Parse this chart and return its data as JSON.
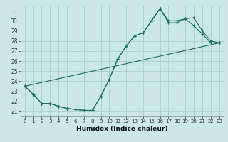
{
  "xlabel": "Humidex (Indice chaleur)",
  "xlim": [
    -0.5,
    23.5
  ],
  "ylim": [
    20.5,
    31.5
  ],
  "background_color": "#cce8e6",
  "grid_color": "#aaccca",
  "line_color": "#1a6b5e",
  "line1_x": [
    0,
    1,
    2,
    3,
    4,
    5,
    6,
    7,
    8,
    9,
    10,
    11,
    12,
    13,
    14,
    15,
    16,
    17,
    18,
    19,
    20,
    21,
    22,
    23
  ],
  "line1_y": [
    23.5,
    22.7,
    21.8,
    21.8,
    21.5,
    21.3,
    21.2,
    21.1,
    21.1,
    22.5,
    24.2,
    26.2,
    27.5,
    28.5,
    28.8,
    30.0,
    31.2,
    29.8,
    29.8,
    30.2,
    29.5,
    28.7,
    27.8,
    27.8
  ],
  "line2_x": [
    0,
    1,
    2,
    3,
    4,
    5,
    6,
    7,
    8,
    9,
    10,
    11,
    12,
    13,
    14,
    15,
    16,
    17,
    18,
    19,
    20,
    21,
    22,
    23
  ],
  "line2_y": [
    23.5,
    22.7,
    21.8,
    21.8,
    21.5,
    21.3,
    21.2,
    21.1,
    21.1,
    22.5,
    24.2,
    26.2,
    27.5,
    28.5,
    28.8,
    30.0,
    31.2,
    30.0,
    30.0,
    30.2,
    30.3,
    29.0,
    28.0,
    27.8
  ],
  "line3_x": [
    0,
    23
  ],
  "line3_y": [
    23.5,
    27.8
  ],
  "xticks": [
    0,
    1,
    2,
    3,
    4,
    5,
    6,
    7,
    8,
    9,
    10,
    11,
    12,
    13,
    14,
    15,
    16,
    17,
    18,
    19,
    20,
    21,
    22,
    23
  ],
  "yticks": [
    21,
    22,
    23,
    24,
    25,
    26,
    27,
    28,
    29,
    30,
    31
  ],
  "xlabel_fontsize": 6.5,
  "xlabel_fontweight": "bold",
  "tick_fontsize": 5.0,
  "ytick_fontsize": 5.5
}
